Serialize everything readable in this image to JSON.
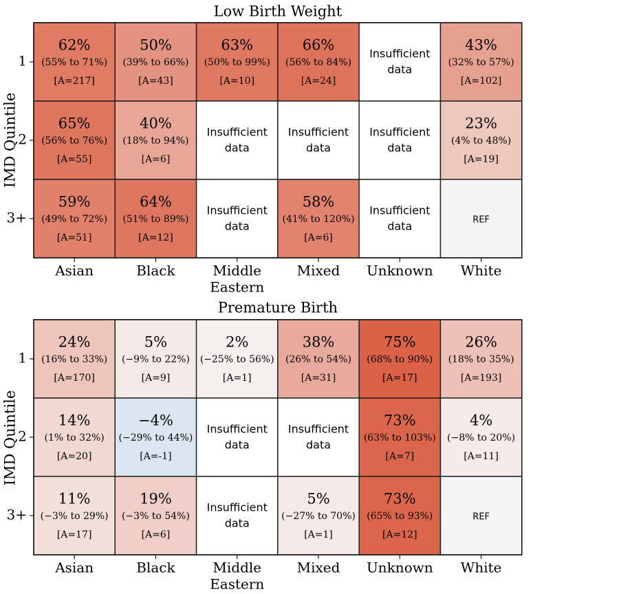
{
  "chart_data": [
    {
      "type": "heatmap",
      "title": "Low Birth Weight",
      "ylabel": "IMD Quintile",
      "xlabel": "",
      "columns": [
        "Asian",
        "Black",
        "Middle\nEastern",
        "Mixed",
        "Unknown",
        "White"
      ],
      "rows": [
        "1",
        "2",
        "3+"
      ],
      "cells": [
        [
          {
            "value": 62,
            "label": "62%",
            "ci": "(55% to 71%)",
            "a": "[A=217]"
          },
          {
            "value": 50,
            "label": "50%",
            "ci": "(39% to 66%)",
            "a": "[A=43]"
          },
          {
            "value": 63,
            "label": "63%",
            "ci": "(50% to 99%)",
            "a": "[A=10]"
          },
          {
            "value": 66,
            "label": "66%",
            "ci": "(56% to 84%)",
            "a": "[A=24]"
          },
          {
            "value": null,
            "text": "Insufficient\ndata"
          },
          {
            "value": 43,
            "label": "43%",
            "ci": "(32% to 57%)",
            "a": "[A=102]"
          }
        ],
        [
          {
            "value": 65,
            "label": "65%",
            "ci": "(56% to 76%)",
            "a": "[A=55]"
          },
          {
            "value": 40,
            "label": "40%",
            "ci": "(18% to 94%)",
            "a": "[A=6]"
          },
          {
            "value": null,
            "text": "Insufficient\ndata"
          },
          {
            "value": null,
            "text": "Insufficient\ndata"
          },
          {
            "value": null,
            "text": "Insufficient\ndata"
          },
          {
            "value": 23,
            "label": "23%",
            "ci": "(4% to 48%)",
            "a": "[A=19]"
          }
        ],
        [
          {
            "value": 59,
            "label": "59%",
            "ci": "(49% to 72%)",
            "a": "[A=51]"
          },
          {
            "value": 64,
            "label": "64%",
            "ci": "(51% to 89%)",
            "a": "[A=12]"
          },
          {
            "value": null,
            "text": "Insufficient\ndata"
          },
          {
            "value": 58,
            "label": "58%",
            "ci": "(41% to 120%)",
            "a": "[A=6]"
          },
          {
            "value": null,
            "text": "Insufficient\ndata"
          },
          {
            "value": null,
            "ref": true,
            "text": "REF"
          }
        ]
      ]
    },
    {
      "type": "heatmap",
      "title": "Premature Birth",
      "ylabel": "IMD Quintile",
      "xlabel": "",
      "columns": [
        "Asian",
        "Black",
        "Middle\nEastern",
        "Mixed",
        "Unknown",
        "White"
      ],
      "rows": [
        "1",
        "2",
        "3+"
      ],
      "cells": [
        [
          {
            "value": 24,
            "label": "24%",
            "ci": "(16% to 33%)",
            "a": "[A=170]"
          },
          {
            "value": 5,
            "label": "5%",
            "ci": "(−9% to 22%)",
            "a": "[A=9]"
          },
          {
            "value": 2,
            "label": "2%",
            "ci": "(−25% to 56%)",
            "a": "[A=1]"
          },
          {
            "value": 38,
            "label": "38%",
            "ci": "(26% to 54%)",
            "a": "[A=31]"
          },
          {
            "value": 75,
            "label": "75%",
            "ci": "(68% to 90%)",
            "a": "[A=17]"
          },
          {
            "value": 26,
            "label": "26%",
            "ci": "(18% to 35%)",
            "a": "[A=193]"
          }
        ],
        [
          {
            "value": 14,
            "label": "14%",
            "ci": "(1% to 32%)",
            "a": "[A=20]"
          },
          {
            "value": -4,
            "label": "−4%",
            "ci": "(−29% to 44%)",
            "a": "[A=-1]"
          },
          {
            "value": null,
            "text": "Insufficient\ndata"
          },
          {
            "value": null,
            "text": "Insufficient\ndata"
          },
          {
            "value": 73,
            "label": "73%",
            "ci": "(63% to 103%)",
            "a": "[A=7]"
          },
          {
            "value": 4,
            "label": "4%",
            "ci": "(−8% to 20%)",
            "a": "[A=11]"
          }
        ],
        [
          {
            "value": 11,
            "label": "11%",
            "ci": "(−3% to 29%)",
            "a": "[A=17]"
          },
          {
            "value": 19,
            "label": "19%",
            "ci": "(−3% to 54%)",
            "a": "[A=6]"
          },
          {
            "value": null,
            "text": "Insufficient\ndata"
          },
          {
            "value": 5,
            "label": "5%",
            "ci": "(−27% to 70%)",
            "a": "[A=1]"
          },
          {
            "value": 73,
            "label": "73%",
            "ci": "(65% to 93%)",
            "a": "[A=12]"
          },
          {
            "value": null,
            "ref": true,
            "text": "REF"
          }
        ]
      ]
    }
  ],
  "colors": {
    "positive_max": "#d9583b",
    "neutral": "#f6f4f2",
    "negative": "#dbe6f0",
    "ref": "#f4f4f4",
    "insufficient": "#ffffff",
    "grid": "#1a1a1a"
  }
}
